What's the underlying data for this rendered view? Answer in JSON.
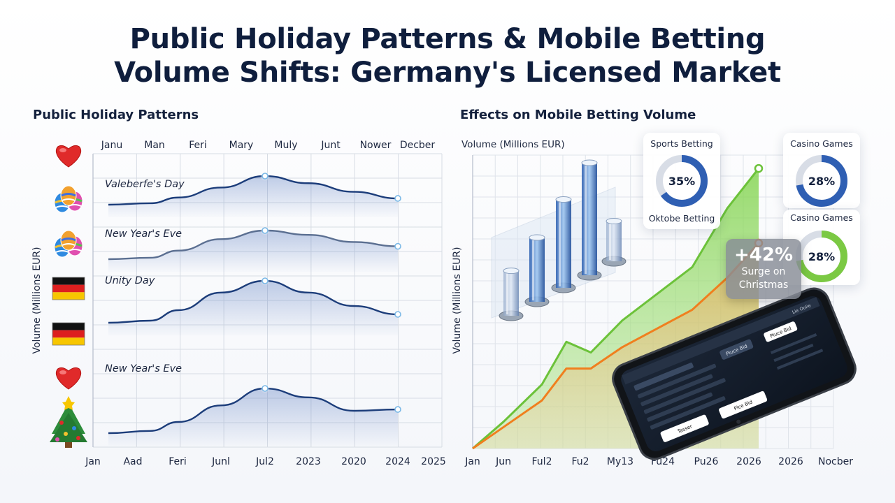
{
  "title_line1": "Public Holiday Patterns & Mobile Betting",
  "title_line2": "Volume Shifts: Germany's Licensed Market",
  "left_panel": {
    "title": "Public Holiday Patterns",
    "ylabel": "Volume (Millions EUR)",
    "top_months": [
      "Janu",
      "Man",
      "Feri",
      "Mary",
      "Muly",
      "Junt",
      "Nower",
      "Decber"
    ],
    "bottom_ticks": [
      "Jan",
      "Aad",
      "Feri",
      "Junl",
      "Jul2",
      "2023",
      "2020",
      "2024",
      "2025"
    ],
    "rows": [
      {
        "icon": "heart-icon"
      },
      {
        "icon": "easter-eggs-icon"
      },
      {
        "icon": "easter-eggs-icon"
      },
      {
        "icon": "germany-flag-icon"
      },
      {
        "icon": "germany-flag-icon"
      },
      {
        "icon": "heart-icon"
      },
      {
        "icon": "christmas-tree-icon"
      }
    ]
  },
  "right_panel": {
    "title": "Effects on Mobile Betting Volume",
    "ylabel_top": "Volume (Millions EUR)",
    "ylabel_side": "Volume (Millions EUR)",
    "surge": {
      "value": "+42%",
      "line1": "Surge on",
      "line2": "Christmas"
    },
    "donuts": [
      {
        "label": "Sports Betting",
        "value_text": "35%",
        "value": 0.35,
        "color": "#2f5fb3"
      },
      {
        "label": "Casino Games",
        "value_text": "28%",
        "value": 0.28,
        "color": "#2f5fb3"
      },
      {
        "label": "Oktobe Betting",
        "value_text": "",
        "value": 0,
        "color": "#2f5fb3"
      },
      {
        "label": "Casino Games",
        "value_text": "28%",
        "value": 0.28,
        "color": "#7bc943"
      }
    ],
    "phone_texts": [
      "Pluce Bid",
      "Pluce Bid",
      "Tasser",
      "Plce Bid",
      "Lie Oolie"
    ]
  },
  "colors": {
    "navy": "#1c3d7a",
    "green": "#6cc23a",
    "orange": "#f07f1e",
    "accent_point": "#7ab8e6"
  },
  "chart_data": [
    {
      "type": "line",
      "title": "Public Holiday Patterns",
      "xlabel": "",
      "ylabel": "Volume (Millions EUR)",
      "x": [
        "Jan",
        "Aad",
        "Feri",
        "Junl",
        "Jul2",
        "2023",
        "2020",
        "2024"
      ],
      "series": [
        {
          "name": "Valeberfe's Day",
          "values": [
            0.0,
            0.05,
            0.25,
            0.6,
            1.0,
            0.75,
            0.45,
            0.22
          ]
        },
        {
          "name": "New Year's Eve",
          "values": [
            0.0,
            0.05,
            0.3,
            0.7,
            1.0,
            0.85,
            0.6,
            0.45
          ]
        },
        {
          "name": "Unity Day",
          "values": [
            0.0,
            0.05,
            0.3,
            0.72,
            1.0,
            0.72,
            0.4,
            0.2
          ]
        },
        {
          "name": "New Year's Eve",
          "values": [
            0.0,
            0.05,
            0.25,
            0.62,
            1.0,
            0.8,
            0.5,
            0.53
          ]
        }
      ]
    },
    {
      "type": "area",
      "title": "Effects on Mobile Betting Volume",
      "xlabel": "",
      "ylabel": "Volume (Millions EUR)",
      "x": [
        "Jan",
        "Jun",
        "Ful2",
        "Fu2",
        "My13",
        "Fu24",
        "Pu26",
        "2026",
        "2026"
      ],
      "series": [
        {
          "name": "",
          "values": [
            0,
            10,
            24,
            40,
            36,
            48,
            68,
            90,
            105
          ]
        },
        {
          "name": "",
          "values": [
            0,
            8,
            18,
            30,
            30,
            38,
            52,
            64,
            77
          ]
        }
      ],
      "bars3d": [
        28,
        40,
        55,
        70,
        25
      ]
    }
  ]
}
